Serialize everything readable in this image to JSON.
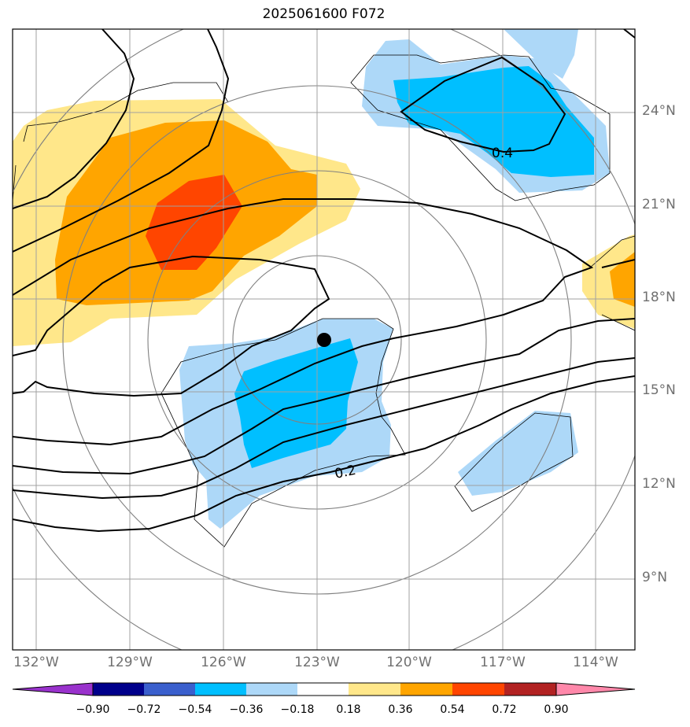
{
  "title": "2025061600 F072",
  "lat_labels": [
    "24°N",
    "21°N",
    "18°N",
    "15°N",
    "12°N",
    "9°N"
  ],
  "lon_labels": [
    "132°W",
    "129°W",
    "126°W",
    "123°W",
    "120°W",
    "117°W",
    "114°W"
  ],
  "contour_labels": [
    "0.4",
    "0.2"
  ],
  "colorbar": {
    "ticks": [
      "−0.90",
      "−0.72",
      "−0.54",
      "−0.36",
      "−0.18",
      "0.18",
      "0.36",
      "0.54",
      "0.72",
      "0.90"
    ],
    "colors": [
      "#9932cc",
      "#00008b",
      "#3a5fcd",
      "#00bfff",
      "#add8f8",
      "#ffffff",
      "#ffe78a",
      "#ffa500",
      "#ff4500",
      "#b22222",
      "#ff88aa"
    ]
  },
  "center_marker": "storm-center"
}
